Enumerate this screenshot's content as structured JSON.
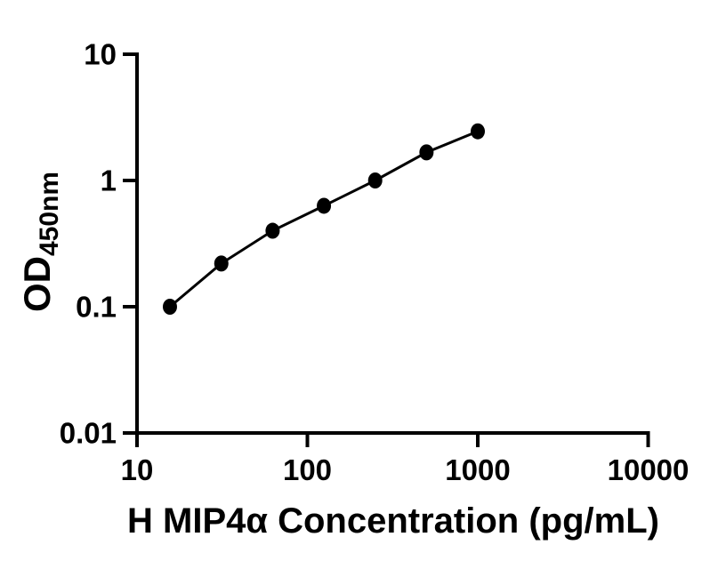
{
  "figure": {
    "background_color": "#ffffff",
    "ink_color": "#000000"
  },
  "chart_data": {
    "type": "line",
    "title": "",
    "xlabel": "H MIP4α Concentration (pg/mL)",
    "ylabel": "OD",
    "ylabel_subscript": "450nm",
    "x_scale": "log",
    "y_scale": "log",
    "xlim": [
      10,
      10000
    ],
    "ylim": [
      0.01,
      10
    ],
    "x_ticks": [
      10,
      100,
      1000,
      10000
    ],
    "x_tick_labels": [
      "10",
      "100",
      "1000",
      "10000"
    ],
    "y_ticks": [
      10,
      1,
      0.1,
      0.01
    ],
    "y_tick_labels": [
      "10",
      "1",
      "0.1",
      "0.01"
    ],
    "grid": false,
    "legend_position": "none",
    "series": [
      {
        "name": "standard-curve",
        "marker": "filled-circle",
        "color": "#000000",
        "x": [
          15.6,
          31.25,
          62.5,
          125,
          250,
          500,
          1000
        ],
        "y": [
          0.1,
          0.22,
          0.4,
          0.63,
          1.0,
          1.67,
          2.45
        ]
      }
    ]
  }
}
